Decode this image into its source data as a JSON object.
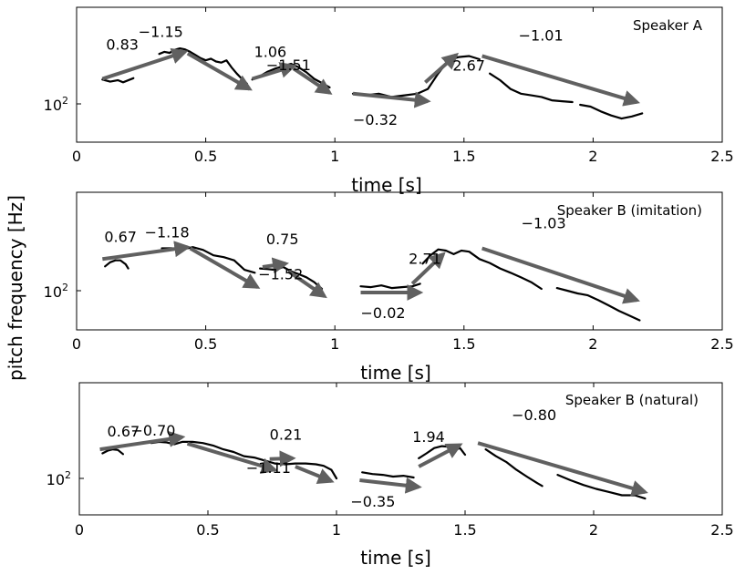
{
  "figure": {
    "ylabel": "pitch frequency [Hz]",
    "colors": {
      "arrow": "#606060",
      "trace": "#000000",
      "frame": "#000000"
    }
  },
  "chart_data": [
    {
      "type": "line",
      "title": "Speaker A",
      "xlabel": "time [s]",
      "xlim": [
        0,
        2.5
      ],
      "xticks": [
        "0",
        "0.5",
        "1",
        "1.5",
        "2",
        "2.5"
      ],
      "yscale": "log",
      "yticks": [
        {
          "base": "10",
          "exp": "2"
        }
      ],
      "series": [
        {
          "x": [
            0.1,
            0.13,
            0.16,
            0.18,
            0.22
          ],
          "y": [
            131,
            128,
            130,
            127,
            133
          ]
        },
        {
          "x": [
            0.32,
            0.34,
            0.36,
            0.38,
            0.4,
            0.42,
            0.44,
            0.46,
            0.48,
            0.5,
            0.52,
            0.54,
            0.56,
            0.58,
            0.6,
            0.62,
            0.64,
            0.66
          ],
          "y": [
            174,
            178,
            176,
            182,
            185,
            183,
            178,
            172,
            166,
            162,
            165,
            160,
            158,
            162,
            150,
            140,
            132,
            125
          ]
        },
        {
          "x": [
            0.68,
            0.71,
            0.74,
            0.77,
            0.8,
            0.83,
            0.86,
            0.89,
            0.92,
            0.95,
            0.98
          ],
          "y": [
            131,
            136,
            143,
            148,
            152,
            156,
            150,
            142,
            132,
            126,
            120
          ]
        },
        {
          "x": [
            1.07,
            1.12,
            1.17,
            1.22,
            1.27,
            1.32,
            1.36,
            1.4,
            1.44,
            1.48,
            1.52,
            1.56
          ],
          "y": [
            112,
            110,
            112,
            108,
            110,
            112,
            118,
            140,
            162,
            168,
            170,
            164
          ]
        },
        {
          "x": [
            1.6,
            1.64,
            1.68,
            1.72,
            1.76,
            1.8,
            1.84,
            1.88,
            1.92
          ],
          "y": [
            140,
            130,
            118,
            112,
            110,
            108,
            104,
            103,
            102
          ]
        },
        {
          "x": [
            1.95,
            1.99,
            2.03,
            2.07,
            2.11,
            2.15,
            2.19
          ],
          "y": [
            99,
            97,
            92,
            88,
            85,
            87,
            90
          ]
        }
      ],
      "arrows": [
        {
          "label": "0.83",
          "from": [
            0.1,
            132
          ],
          "to": [
            0.42,
            178
          ]
        },
        {
          "label": "−1.15",
          "from": [
            0.43,
            175
          ],
          "to": [
            0.67,
            118
          ]
        },
        {
          "label": "1.06",
          "from": [
            0.68,
            132
          ],
          "to": [
            0.84,
            152
          ]
        },
        {
          "label": "−1.51",
          "from": [
            0.84,
            148
          ],
          "to": [
            0.98,
            113
          ]
        },
        {
          "label": "2.67",
          "from": [
            1.35,
            127
          ],
          "to": [
            1.47,
            172
          ]
        },
        {
          "label": "−0.32",
          "from": [
            1.07,
            112
          ],
          "to": [
            1.36,
            103
          ]
        },
        {
          "label": "−1.01",
          "from": [
            1.57,
            170
          ],
          "to": [
            2.17,
            102
          ]
        }
      ]
    },
    {
      "type": "line",
      "title": "Speaker B (imitation)",
      "xlabel": "time [s]",
      "xlim": [
        0,
        2.5
      ],
      "xticks": [
        "0",
        "0.5",
        "1",
        "1.5",
        "2",
        "2.5"
      ],
      "yscale": "log",
      "yticks": [
        {
          "base": "10",
          "exp": "2"
        }
      ],
      "series": [
        {
          "x": [
            0.11,
            0.13,
            0.15,
            0.17,
            0.19,
            0.2
          ],
          "y": [
            131,
            137,
            140,
            140,
            134,
            128
          ]
        },
        {
          "x": [
            0.33,
            0.37,
            0.41,
            0.45,
            0.49,
            0.53,
            0.57,
            0.61,
            0.65,
            0.69
          ],
          "y": [
            160,
            160,
            158,
            162,
            157,
            148,
            145,
            140,
            126,
            122
          ]
        },
        {
          "x": [
            0.71,
            0.74,
            0.77,
            0.8,
            0.83,
            0.86,
            0.89,
            0.92,
            0.95
          ],
          "y": [
            128,
            127,
            126,
            130,
            124,
            120,
            116,
            110,
            102
          ]
        },
        {
          "x": [
            1.1,
            1.14,
            1.18,
            1.22,
            1.26,
            1.3,
            1.33
          ],
          "y": [
            105,
            104,
            106,
            103,
            104,
            105,
            108
          ]
        },
        {
          "x": [
            1.34,
            1.37,
            1.4,
            1.43,
            1.46,
            1.49,
            1.52,
            1.56,
            1.6,
            1.64,
            1.68,
            1.72,
            1.76,
            1.8
          ],
          "y": [
            135,
            148,
            158,
            156,
            150,
            156,
            154,
            142,
            136,
            128,
            122,
            116,
            110,
            102
          ]
        },
        {
          "x": [
            1.86,
            1.9,
            1.94,
            1.98,
            2.02,
            2.06,
            2.1,
            2.14,
            2.18
          ],
          "y": [
            103,
            100,
            97,
            95,
            90,
            85,
            80,
            76,
            72
          ]
        }
      ],
      "arrows": [
        {
          "label": "0.67",
          "from": [
            0.1,
            142
          ],
          "to": [
            0.43,
            162
          ]
        },
        {
          "label": "−1.18",
          "from": [
            0.44,
            160
          ],
          "to": [
            0.7,
            104
          ]
        },
        {
          "label": "0.75",
          "from": [
            0.72,
            130
          ],
          "to": [
            0.81,
            135
          ]
        },
        {
          "label": "−1.52",
          "from": [
            0.82,
            124
          ],
          "to": [
            0.96,
            94
          ]
        },
        {
          "label": "2.71",
          "from": [
            1.3,
            108
          ],
          "to": [
            1.42,
            150
          ]
        },
        {
          "label": "−0.02",
          "from": [
            1.1,
            98
          ],
          "to": [
            1.33,
            98
          ]
        },
        {
          "label": "−1.03",
          "from": [
            1.57,
            160
          ],
          "to": [
            2.17,
            90
          ]
        }
      ]
    },
    {
      "type": "line",
      "title": "Speaker B (natural)",
      "xlabel": "time [s]",
      "xlim": [
        0,
        2.5
      ],
      "xticks": [
        "0",
        "0.5",
        "1",
        "1.5",
        "2",
        "2.5"
      ],
      "yscale": "log",
      "yticks": [
        {
          "base": "10",
          "exp": "2"
        }
      ],
      "series": [
        {
          "x": [
            0.09,
            0.11,
            0.13,
            0.15,
            0.17
          ],
          "y": [
            132,
            136,
            138,
            137,
            131
          ]
        },
        {
          "x": [
            0.28,
            0.31,
            0.34,
            0.37,
            0.4,
            0.44,
            0.48,
            0.52,
            0.56,
            0.6,
            0.64,
            0.68,
            0.72,
            0.76,
            0.8,
            0.84,
            0.88,
            0.92,
            0.95,
            0.98,
            1.0
          ],
          "y": [
            148,
            150,
            149,
            146,
            150,
            150,
            148,
            144,
            138,
            134,
            128,
            126,
            122,
            118,
            117,
            118,
            118,
            117,
            115,
            110,
            100
          ]
        },
        {
          "x": [
            1.1,
            1.14,
            1.18,
            1.22,
            1.26,
            1.3
          ],
          "y": [
            107,
            105,
            104,
            102,
            103,
            101
          ]
        },
        {
          "x": [
            1.32,
            1.35,
            1.38,
            1.41,
            1.44,
            1.46,
            1.48,
            1.5
          ],
          "y": [
            125,
            132,
            140,
            143,
            142,
            137,
            140,
            130
          ]
        },
        {
          "x": [
            1.58,
            1.62,
            1.66,
            1.7,
            1.74,
            1.78,
            1.8
          ],
          "y": [
            138,
            128,
            120,
            110,
            102,
            95,
            92
          ]
        },
        {
          "x": [
            1.86,
            1.91,
            1.96,
            2.01,
            2.06,
            2.11,
            2.16,
            2.2
          ],
          "y": [
            104,
            98,
            93,
            89,
            86,
            83,
            83,
            80
          ]
        }
      ],
      "arrows": [
        {
          "label": "0.67",
          "from": [
            0.08,
            138
          ],
          "to": [
            0.4,
            158
          ]
        },
        {
          "label": "−0.70",
          "from": [
            0.42,
            147
          ],
          "to": [
            0.76,
            110
          ]
        },
        {
          "label": "0.21",
          "from": [
            0.74,
            124
          ],
          "to": [
            0.83,
            125
          ]
        },
        {
          "label": "−1.11",
          "from": [
            0.84,
            114
          ],
          "to": [
            0.98,
            97
          ]
        },
        {
          "label": "1.94",
          "from": [
            1.32,
            114
          ],
          "to": [
            1.48,
            145
          ]
        },
        {
          "label": "−0.35",
          "from": [
            1.09,
            98
          ],
          "to": [
            1.32,
            91
          ]
        },
        {
          "label": "−0.80",
          "from": [
            1.55,
            148
          ],
          "to": [
            2.2,
            86
          ]
        }
      ]
    }
  ]
}
